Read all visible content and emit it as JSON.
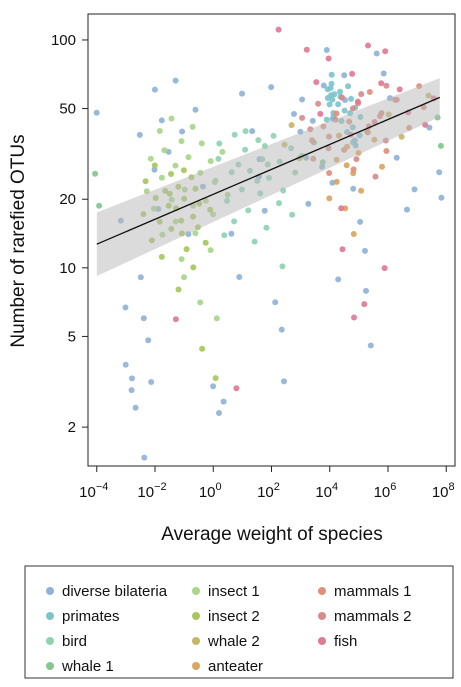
{
  "chart_data": {
    "type": "scatter",
    "title": "",
    "xlabel": "Average weight of species",
    "ylabel": "Number of rarefied OTUs",
    "x_scale": "log10",
    "y_scale": "log10",
    "xlim": [
      5e-05,
      200000000
    ],
    "ylim": [
      1.35,
      130
    ],
    "x_ticks": [
      0.0001,
      0.01,
      1,
      100,
      10000,
      1000000,
      100000000
    ],
    "x_tick_labels": [
      {
        "base": "10",
        "exp": "−4"
      },
      {
        "base": "10",
        "exp": "−2"
      },
      {
        "base": "10",
        "exp": "0"
      },
      {
        "base": "10",
        "exp": "2"
      },
      {
        "base": "10",
        "exp": "4"
      },
      {
        "base": "10",
        "exp": "6"
      },
      {
        "base": "10",
        "exp": "8"
      }
    ],
    "y_ticks": [
      2,
      5,
      10,
      20,
      50,
      100
    ],
    "y_tick_labels": [
      "2",
      "5",
      "10",
      "20",
      "50",
      "100"
    ],
    "grid": false,
    "legend_position": "bottom",
    "regression": {
      "type": "line",
      "x": [
        0.0001,
        60000000
      ],
      "y": [
        12.7,
        56
      ],
      "ci_lower": [
        9.2,
        46
      ],
      "ci_upper": [
        17.5,
        68
      ]
    },
    "series": [
      {
        "name": "diverse bilateria",
        "color": "#8fb3d6",
        "points": [
          [
            0.0001,
            48
          ],
          [
            0.0008,
            16
          ],
          [
            0.001,
            6.7
          ],
          [
            0.0012,
            3.8
          ],
          [
            0.0015,
            2.9
          ],
          [
            0.0018,
            3.3
          ],
          [
            0.002,
            2.4
          ],
          [
            0.003,
            38
          ],
          [
            0.003,
            9
          ],
          [
            0.004,
            6
          ],
          [
            0.005,
            1.45
          ],
          [
            0.006,
            3.2
          ],
          [
            0.007,
            4.8
          ],
          [
            0.008,
            60
          ],
          [
            0.01,
            27
          ],
          [
            0.012,
            18
          ],
          [
            0.02,
            45
          ],
          [
            0.03,
            32
          ],
          [
            0.05,
            66
          ],
          [
            0.1,
            40
          ],
          [
            0.15,
            14
          ],
          [
            0.3,
            50
          ],
          [
            0.5,
            23
          ],
          [
            1,
            3
          ],
          [
            1.5,
            2.3
          ],
          [
            2,
            2.6
          ],
          [
            5,
            14
          ],
          [
            8,
            9
          ],
          [
            12,
            58
          ],
          [
            20,
            40
          ],
          [
            30,
            25
          ],
          [
            40,
            30
          ],
          [
            60,
            18
          ],
          [
            100,
            62
          ],
          [
            150,
            7
          ],
          [
            200,
            5.3
          ],
          [
            300,
            3.2
          ],
          [
            500,
            48
          ],
          [
            800,
            40
          ],
          [
            1000,
            55
          ],
          [
            1500,
            30
          ],
          [
            2000,
            19
          ],
          [
            3000,
            44
          ],
          [
            5000,
            28
          ],
          [
            7000,
            64
          ],
          [
            10000,
            90
          ],
          [
            12000,
            45
          ],
          [
            15000,
            24
          ],
          [
            20000,
            9
          ],
          [
            30000,
            70
          ],
          [
            40000,
            55
          ],
          [
            60000,
            36
          ],
          [
            80000,
            22
          ],
          [
            100000,
            16
          ],
          [
            150000,
            12
          ],
          [
            200000,
            8
          ],
          [
            300000,
            4.5
          ],
          [
            500000,
            86
          ],
          [
            700000,
            72
          ],
          [
            1000000,
            55
          ],
          [
            2000000,
            30
          ],
          [
            5000000,
            18
          ],
          [
            10000000,
            22
          ],
          [
            30000000,
            41
          ],
          [
            50000000,
            26
          ],
          [
            80000000,
            20
          ]
        ]
      },
      {
        "name": "primates",
        "color": "#7cc4cc",
        "points": [
          [
            8000,
            60
          ],
          [
            9000,
            55
          ],
          [
            10000,
            52
          ],
          [
            10000,
            45
          ],
          [
            11000,
            62
          ],
          [
            12000,
            58
          ],
          [
            12000,
            48
          ],
          [
            13000,
            70
          ],
          [
            14000,
            65
          ],
          [
            15000,
            54
          ],
          [
            16000,
            46
          ],
          [
            18000,
            58
          ],
          [
            20000,
            52
          ],
          [
            22000,
            60
          ],
          [
            25000,
            44
          ],
          [
            28000,
            57
          ],
          [
            30000,
            49
          ],
          [
            35000,
            63
          ],
          [
            40000,
            40
          ],
          [
            45000,
            55
          ],
          [
            50000,
            48
          ],
          [
            55000,
            36
          ],
          [
            60000,
            42
          ],
          [
            70000,
            51
          ],
          [
            80000,
            34
          ],
          [
            90000,
            46
          ],
          [
            100000,
            38
          ]
        ]
      },
      {
        "name": "bird",
        "color": "#8fd3b3",
        "points": [
          [
            1,
            24
          ],
          [
            1.5,
            30
          ],
          [
            2,
            14
          ],
          [
            2,
            35
          ],
          [
            3,
            20
          ],
          [
            4,
            26
          ],
          [
            5,
            38
          ],
          [
            6,
            16
          ],
          [
            8,
            28
          ],
          [
            10,
            33
          ],
          [
            12,
            22
          ],
          [
            15,
            40
          ],
          [
            18,
            18
          ],
          [
            20,
            27
          ],
          [
            25,
            13
          ],
          [
            30,
            36
          ],
          [
            35,
            24
          ],
          [
            40,
            30
          ],
          [
            50,
            21
          ],
          [
            60,
            34
          ],
          [
            70,
            15
          ],
          [
            80,
            28
          ],
          [
            100,
            25
          ],
          [
            120,
            38
          ],
          [
            150,
            19
          ],
          [
            200,
            29
          ],
          [
            250,
            10
          ],
          [
            300,
            22
          ],
          [
            400,
            33
          ],
          [
            500,
            17
          ],
          [
            700,
            26
          ],
          [
            1000,
            31
          ]
        ]
      },
      {
        "name": "whale 1",
        "color": "#84c78f",
        "points": [
          [
            0.0001,
            26
          ],
          [
            0.0001,
            19
          ],
          [
            3000,
            36
          ],
          [
            5000,
            29
          ],
          [
            80000000,
            34
          ],
          [
            60000000,
            46
          ]
        ]
      },
      {
        "name": "insect 1",
        "color": "#a8d68a",
        "points": [
          [
            0.005,
            22
          ],
          [
            0.008,
            30
          ],
          [
            0.01,
            18
          ],
          [
            0.012,
            40
          ],
          [
            0.015,
            25
          ],
          [
            0.02,
            14
          ],
          [
            0.025,
            33
          ],
          [
            0.03,
            20
          ],
          [
            0.04,
            45
          ],
          [
            0.05,
            16
          ],
          [
            0.06,
            28
          ],
          [
            0.07,
            11
          ],
          [
            0.08,
            36
          ],
          [
            0.1,
            22
          ],
          [
            0.12,
            9
          ],
          [
            0.15,
            31
          ],
          [
            0.18,
            19
          ],
          [
            0.2,
            42
          ],
          [
            0.25,
            14
          ],
          [
            0.3,
            26
          ],
          [
            0.4,
            7
          ],
          [
            0.5,
            35
          ],
          [
            0.6,
            20
          ],
          [
            0.7,
            12
          ],
          [
            0.8,
            29
          ],
          [
            1,
            17
          ],
          [
            1.2,
            24
          ],
          [
            1.5,
            6
          ],
          [
            2,
            32
          ],
          [
            3,
            21
          ]
        ]
      },
      {
        "name": "insect 2",
        "color": "#a6c85a",
        "points": [
          [
            0.004,
            17
          ],
          [
            0.006,
            24
          ],
          [
            0.008,
            13
          ],
          [
            0.01,
            20
          ],
          [
            0.012,
            28
          ],
          [
            0.015,
            16
          ],
          [
            0.018,
            22
          ],
          [
            0.02,
            11
          ],
          [
            0.025,
            19
          ],
          [
            0.03,
            26
          ],
          [
            0.035,
            15
          ],
          [
            0.04,
            21
          ],
          [
            0.05,
            18
          ],
          [
            0.06,
            8
          ],
          [
            0.07,
            23
          ],
          [
            0.08,
            14
          ],
          [
            0.09,
            27
          ],
          [
            0.1,
            16
          ],
          [
            0.12,
            20
          ],
          [
            0.15,
            12
          ],
          [
            0.18,
            25
          ],
          [
            0.2,
            17
          ],
          [
            0.25,
            10
          ],
          [
            0.3,
            22
          ],
          [
            0.35,
            15
          ],
          [
            0.4,
            19
          ],
          [
            0.5,
            4.4
          ],
          [
            0.6,
            13
          ],
          [
            0.8,
            18
          ],
          [
            1,
            3.3
          ]
        ]
      },
      {
        "name": "whale 2",
        "color": "#c8b56a",
        "points": [
          [
            300,
            35
          ],
          [
            500,
            42
          ],
          [
            800,
            30
          ],
          [
            1000000,
            47
          ],
          [
            3000000,
            38
          ],
          [
            30000000,
            57
          ]
        ]
      },
      {
        "name": "anteater",
        "color": "#d9a560",
        "points": [
          [
            10000,
            20
          ],
          [
            15000,
            30
          ],
          [
            20000,
            24
          ],
          [
            25000,
            38
          ],
          [
            30000,
            18
          ],
          [
            40000,
            28
          ],
          [
            50000,
            34
          ],
          [
            60000,
            14
          ],
          [
            80000,
            26
          ],
          [
            100000,
            32
          ],
          [
            150000,
            22
          ],
          [
            200000,
            40
          ],
          [
            300000,
            36
          ],
          [
            500000,
            28
          ]
        ]
      },
      {
        "name": "mammals 1",
        "color": "#e0907a",
        "points": [
          [
            2000,
            36
          ],
          [
            3000,
            30
          ],
          [
            5000,
            42
          ],
          [
            8000,
            26
          ],
          [
            10000,
            38
          ],
          [
            20000,
            48
          ],
          [
            30000,
            33
          ],
          [
            50000,
            44
          ],
          [
            80000,
            27
          ],
          [
            100000,
            52
          ],
          [
            200000,
            39
          ],
          [
            300000,
            60
          ],
          [
            500000,
            46
          ],
          [
            1000000,
            33
          ],
          [
            2000000,
            55
          ],
          [
            5000000,
            41
          ],
          [
            10000000,
            62
          ],
          [
            20000000,
            50
          ]
        ]
      },
      {
        "name": "mammals 2",
        "color": "#d98a8a",
        "points": [
          [
            1000,
            46
          ],
          [
            2000,
            40
          ],
          [
            5000,
            52
          ],
          [
            10000,
            34
          ],
          [
            20000,
            44
          ],
          [
            30000,
            56
          ],
          [
            50000,
            38
          ],
          [
            70000,
            50
          ],
          [
            100000,
            30
          ],
          [
            150000,
            58
          ],
          [
            200000,
            42
          ],
          [
            300000,
            25
          ],
          [
            500000,
            48
          ],
          [
            800000,
            62
          ],
          [
            1000000,
            36
          ],
          [
            2000000,
            55
          ]
        ]
      },
      {
        "name": "fish",
        "color": "#e07a93",
        "points": [
          [
            0.05,
            6
          ],
          [
            5,
            3
          ],
          [
            200,
            110
          ],
          [
            1500,
            90
          ],
          [
            3000,
            65
          ],
          [
            5000,
            47
          ],
          [
            10000,
            84
          ],
          [
            20000,
            18
          ],
          [
            30000,
            12
          ],
          [
            50000,
            72
          ],
          [
            60000,
            6
          ],
          [
            100000,
            54
          ],
          [
            150000,
            7
          ],
          [
            200000,
            94
          ],
          [
            300000,
            44
          ],
          [
            500000,
            65
          ],
          [
            700000,
            10
          ],
          [
            1000000,
            90
          ],
          [
            2000000,
            60
          ],
          [
            5000000,
            48
          ],
          [
            20000000,
            42
          ],
          [
            40000000,
            55
          ]
        ]
      }
    ]
  }
}
